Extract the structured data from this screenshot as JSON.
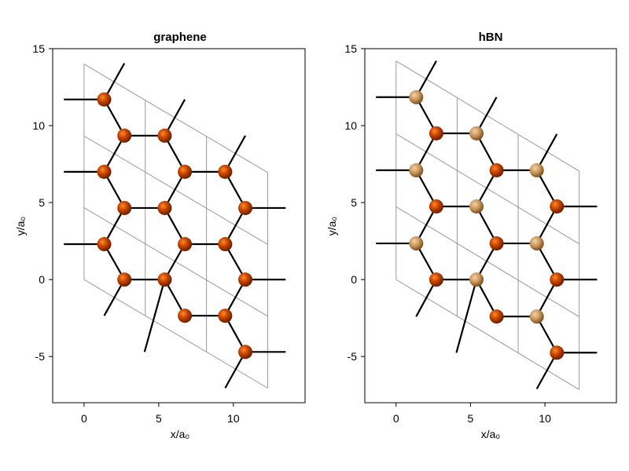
{
  "chart_data": [
    {
      "type": "scatter",
      "title": "graphene",
      "xlabel": "x/a₀",
      "ylabel": "y/a₀",
      "xlim": [
        -2.1,
        14.8
      ],
      "ylim": [
        -8.0,
        15.0
      ],
      "xticks": [
        0,
        5,
        10
      ],
      "yticks": [
        -5,
        0,
        5,
        10,
        15
      ],
      "grid": false,
      "cell_lines": [
        {
          "x": [
            0,
            0
          ],
          "y": [
            0,
            14.0
          ]
        },
        {
          "x": [
            4.1,
            4.1
          ],
          "y": [
            -2.35,
            11.65
          ]
        },
        {
          "x": [
            8.2,
            8.2
          ],
          "y": [
            -4.7,
            9.3
          ]
        },
        {
          "x": [
            12.3,
            12.3
          ],
          "y": [
            -7.05,
            6.95
          ]
        },
        {
          "x": [
            0,
            12.3
          ],
          "y": [
            0,
            -7.05
          ]
        },
        {
          "x": [
            0,
            12.3
          ],
          "y": [
            4.67,
            -2.38
          ]
        },
        {
          "x": [
            0,
            12.3
          ],
          "y": [
            9.33,
            2.28
          ]
        },
        {
          "x": [
            0,
            12.3
          ],
          "y": [
            14.0,
            6.95
          ]
        }
      ],
      "bonds": [
        [
          1.35,
          11.7,
          2.7,
          9.35
        ],
        [
          2.7,
          9.35,
          5.4,
          9.35
        ],
        [
          5.4,
          9.35,
          6.75,
          7.0
        ],
        [
          6.75,
          7.0,
          9.45,
          7.0
        ],
        [
          9.45,
          7.0,
          10.8,
          4.65
        ],
        [
          1.35,
          7.0,
          2.7,
          9.35
        ],
        [
          1.35,
          7.0,
          2.7,
          4.65
        ],
        [
          2.7,
          4.65,
          5.4,
          4.65
        ],
        [
          5.4,
          4.65,
          6.75,
          7.0
        ],
        [
          5.4,
          4.65,
          6.75,
          2.3
        ],
        [
          6.75,
          2.3,
          9.45,
          2.3
        ],
        [
          9.45,
          2.3,
          10.8,
          4.65
        ],
        [
          9.45,
          2.3,
          10.8,
          0.0
        ],
        [
          1.35,
          2.3,
          2.7,
          4.65
        ],
        [
          1.35,
          2.3,
          2.7,
          0.0
        ],
        [
          2.7,
          0.0,
          5.4,
          0.0
        ],
        [
          5.4,
          0.0,
          6.75,
          2.3
        ],
        [
          5.4,
          0.0,
          6.75,
          -2.35
        ],
        [
          6.75,
          -2.35,
          9.45,
          -2.35
        ],
        [
          9.45,
          -2.35,
          10.8,
          0.0
        ],
        [
          9.45,
          -2.35,
          10.8,
          -4.7
        ],
        [
          -1.35,
          11.7,
          1.35,
          11.7
        ],
        [
          1.35,
          11.7,
          2.7,
          14.05
        ],
        [
          -1.35,
          7.0,
          1.35,
          7.0
        ],
        [
          -1.35,
          2.3,
          1.35,
          2.3
        ],
        [
          2.7,
          0.0,
          1.35,
          -2.35
        ],
        [
          5.4,
          9.35,
          6.75,
          11.7
        ],
        [
          5.4,
          0.0,
          4.05,
          -4.7
        ],
        [
          9.45,
          7.0,
          10.8,
          9.35
        ],
        [
          10.8,
          4.65,
          13.5,
          4.65
        ],
        [
          10.8,
          0.0,
          13.5,
          0.0
        ],
        [
          10.8,
          -4.7,
          13.5,
          -4.7
        ],
        [
          10.8,
          -4.7,
          9.45,
          -7.05
        ]
      ],
      "atoms": [
        {
          "x": 1.35,
          "y": 11.7,
          "element": "C"
        },
        {
          "x": 2.7,
          "y": 9.35,
          "element": "C"
        },
        {
          "x": 5.4,
          "y": 9.35,
          "element": "C"
        },
        {
          "x": 1.35,
          "y": 7.0,
          "element": "C"
        },
        {
          "x": 6.75,
          "y": 7.0,
          "element": "C"
        },
        {
          "x": 9.45,
          "y": 7.0,
          "element": "C"
        },
        {
          "x": 2.7,
          "y": 4.65,
          "element": "C"
        },
        {
          "x": 5.4,
          "y": 4.65,
          "element": "C"
        },
        {
          "x": 10.8,
          "y": 4.65,
          "element": "C"
        },
        {
          "x": 1.35,
          "y": 2.3,
          "element": "C"
        },
        {
          "x": 6.75,
          "y": 2.3,
          "element": "C"
        },
        {
          "x": 9.45,
          "y": 2.3,
          "element": "C"
        },
        {
          "x": 2.7,
          "y": 0.0,
          "element": "C"
        },
        {
          "x": 5.4,
          "y": 0.0,
          "element": "C"
        },
        {
          "x": 10.8,
          "y": 0.0,
          "element": "C"
        },
        {
          "x": 6.75,
          "y": -2.35,
          "element": "C"
        },
        {
          "x": 9.45,
          "y": -2.35,
          "element": "C"
        },
        {
          "x": 10.8,
          "y": -4.7,
          "element": "C"
        }
      ],
      "colors": {
        "C": "#c74400"
      }
    },
    {
      "type": "scatter",
      "title": "hBN",
      "xlabel": "x/a₀",
      "ylabel": "y/a₀",
      "xlim": [
        -2.1,
        14.8
      ],
      "ylim": [
        -8.0,
        15.0
      ],
      "xticks": [
        0,
        5,
        10
      ],
      "yticks": [
        -5,
        0,
        5,
        10,
        15
      ],
      "grid": false,
      "cell_lines": [
        {
          "x": [
            0,
            0
          ],
          "y": [
            0,
            14.2
          ]
        },
        {
          "x": [
            4.1,
            4.1
          ],
          "y": [
            -2.4,
            11.8
          ]
        },
        {
          "x": [
            8.2,
            8.2
          ],
          "y": [
            -4.8,
            9.4
          ]
        },
        {
          "x": [
            12.3,
            12.3
          ],
          "y": [
            -7.15,
            7.05
          ]
        },
        {
          "x": [
            0,
            12.3
          ],
          "y": [
            0,
            -7.15
          ]
        },
        {
          "x": [
            0,
            12.3
          ],
          "y": [
            4.73,
            -2.42
          ]
        },
        {
          "x": [
            0,
            12.3
          ],
          "y": [
            9.47,
            2.32
          ]
        },
        {
          "x": [
            0,
            12.3
          ],
          "y": [
            14.2,
            7.05
          ]
        }
      ],
      "bonds": [
        [
          1.35,
          11.85,
          2.7,
          9.5
        ],
        [
          2.7,
          9.5,
          5.4,
          9.5
        ],
        [
          5.4,
          9.5,
          6.75,
          7.1
        ],
        [
          6.75,
          7.1,
          9.45,
          7.1
        ],
        [
          9.45,
          7.1,
          10.8,
          4.75
        ],
        [
          1.35,
          7.1,
          2.7,
          9.5
        ],
        [
          1.35,
          7.1,
          2.7,
          4.75
        ],
        [
          2.7,
          4.75,
          5.4,
          4.75
        ],
        [
          5.4,
          4.75,
          6.75,
          7.1
        ],
        [
          5.4,
          4.75,
          6.75,
          2.35
        ],
        [
          6.75,
          2.35,
          9.45,
          2.35
        ],
        [
          9.45,
          2.35,
          10.8,
          4.75
        ],
        [
          9.45,
          2.35,
          10.8,
          0.0
        ],
        [
          1.35,
          2.35,
          2.7,
          4.75
        ],
        [
          1.35,
          2.35,
          2.7,
          0.0
        ],
        [
          2.7,
          0.0,
          5.4,
          0.0
        ],
        [
          5.4,
          0.0,
          6.75,
          2.35
        ],
        [
          5.4,
          0.0,
          6.75,
          -2.4
        ],
        [
          6.75,
          -2.4,
          9.45,
          -2.4
        ],
        [
          9.45,
          -2.4,
          10.8,
          0.0
        ],
        [
          9.45,
          -2.4,
          10.8,
          -4.75
        ],
        [
          -1.35,
          11.85,
          1.35,
          11.85
        ],
        [
          1.35,
          11.85,
          2.7,
          14.2
        ],
        [
          -1.35,
          7.1,
          1.35,
          7.1
        ],
        [
          -1.35,
          2.35,
          1.35,
          2.35
        ],
        [
          2.7,
          0.0,
          1.35,
          -2.4
        ],
        [
          5.4,
          9.5,
          6.75,
          11.85
        ],
        [
          5.4,
          0.0,
          4.05,
          -4.75
        ],
        [
          9.45,
          7.1,
          10.8,
          9.45
        ],
        [
          10.8,
          4.75,
          13.5,
          4.75
        ],
        [
          10.8,
          0.0,
          13.5,
          0.0
        ],
        [
          10.8,
          -4.75,
          13.5,
          -4.75
        ],
        [
          10.8,
          -4.75,
          9.45,
          -7.1
        ]
      ],
      "atoms": [
        {
          "x": 1.35,
          "y": 11.85,
          "element": "B"
        },
        {
          "x": 2.7,
          "y": 9.5,
          "element": "N"
        },
        {
          "x": 5.4,
          "y": 9.5,
          "element": "B"
        },
        {
          "x": 1.35,
          "y": 7.1,
          "element": "B"
        },
        {
          "x": 6.75,
          "y": 7.1,
          "element": "N"
        },
        {
          "x": 9.45,
          "y": 7.1,
          "element": "B"
        },
        {
          "x": 2.7,
          "y": 4.75,
          "element": "N"
        },
        {
          "x": 5.4,
          "y": 4.75,
          "element": "B"
        },
        {
          "x": 10.8,
          "y": 4.75,
          "element": "N"
        },
        {
          "x": 1.35,
          "y": 2.35,
          "element": "B"
        },
        {
          "x": 6.75,
          "y": 2.35,
          "element": "N"
        },
        {
          "x": 9.45,
          "y": 2.35,
          "element": "B"
        },
        {
          "x": 2.7,
          "y": 0.0,
          "element": "N"
        },
        {
          "x": 5.4,
          "y": 0.0,
          "element": "B"
        },
        {
          "x": 10.8,
          "y": 0.0,
          "element": "N"
        },
        {
          "x": 6.75,
          "y": -2.4,
          "element": "N"
        },
        {
          "x": 9.45,
          "y": -2.4,
          "element": "B"
        },
        {
          "x": 10.8,
          "y": -4.75,
          "element": "N"
        }
      ],
      "colors": {
        "N": "#c74400",
        "B": "#d09a60"
      }
    }
  ]
}
